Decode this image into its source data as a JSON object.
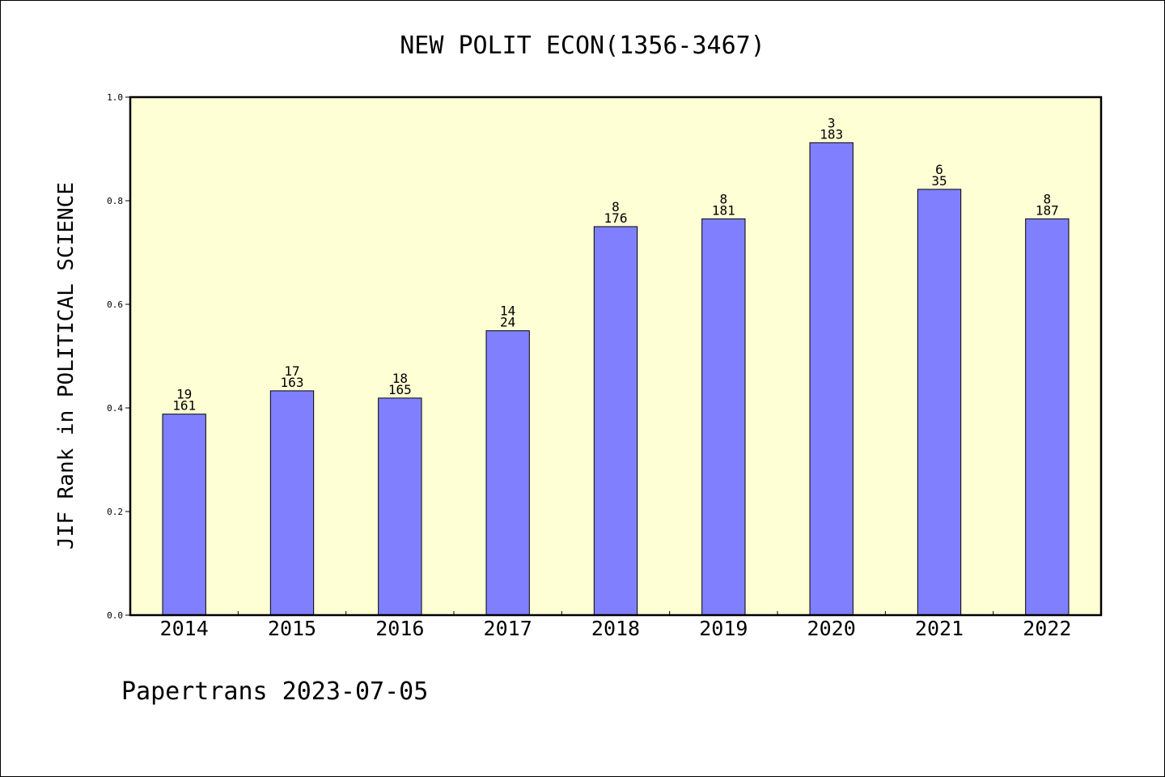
{
  "title": "NEW POLIT ECON(1356-3467)",
  "footer": "Papertrans 2023-07-05",
  "colors": {
    "plot_background": "#FFFFD5",
    "bar_fill": "#8080FF",
    "bar_stroke": "#000000",
    "axis": "#000000"
  },
  "chart_data": {
    "type": "bar",
    "title": "NEW POLIT ECON(1356-3467)",
    "xlabel": "",
    "ylabel": "JIF Rank in POLITICAL SCIENCE",
    "ylim": [
      0,
      1.0
    ],
    "yticks": [
      "0.0",
      "0.2",
      "0.4",
      "0.6",
      "0.8",
      "1.0"
    ],
    "ytick_values": [
      0,
      0.2,
      0.4,
      0.6,
      0.8,
      1.0
    ],
    "grid": false,
    "categories": [
      "2014",
      "2015",
      "2016",
      "2017",
      "2018",
      "2019",
      "2020",
      "2021",
      "2022"
    ],
    "values": [
      0.388,
      0.433,
      0.419,
      0.549,
      0.75,
      0.765,
      0.912,
      0.822,
      0.765
    ],
    "labels_top": [
      "19",
      "17",
      "18",
      "14",
      "8",
      "8",
      "3",
      "6",
      "8"
    ],
    "labels_bottom": [
      "161",
      "163",
      "165",
      "24",
      "176",
      "181",
      "183",
      "35",
      "187"
    ]
  }
}
